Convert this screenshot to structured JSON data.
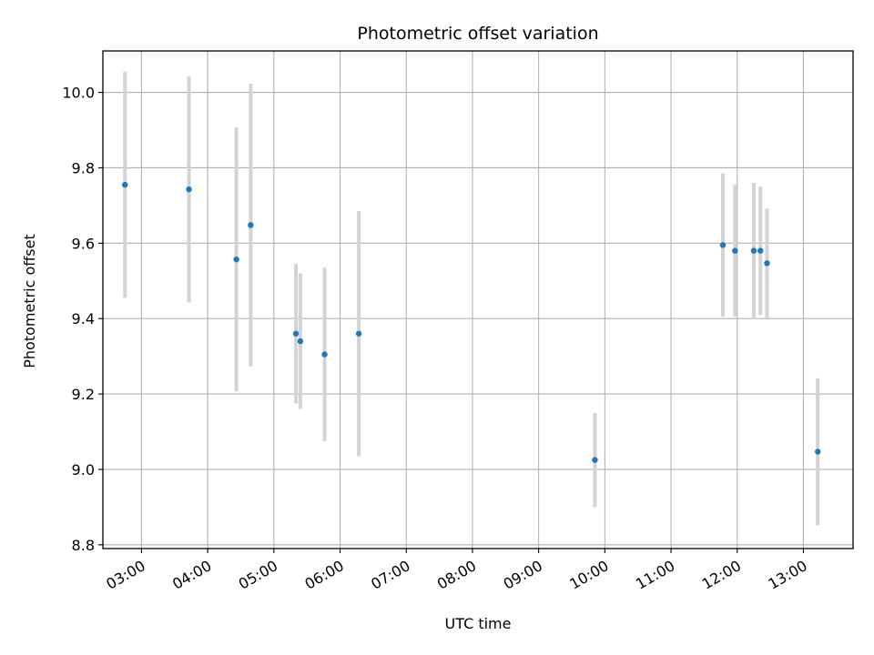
{
  "chart_data": {
    "type": "scatter",
    "title": "Photometric offset variation",
    "xlabel": "UTC time",
    "ylabel": "Photometric offset",
    "x_ticks": [
      "03:00",
      "04:00",
      "05:00",
      "06:00",
      "07:00",
      "08:00",
      "09:00",
      "10:00",
      "11:00",
      "12:00",
      "13:00"
    ],
    "y_ticks": [
      "8.8",
      "9.0",
      "9.2",
      "9.4",
      "9.6",
      "9.8",
      "10.0"
    ],
    "xlim": [
      "02:25",
      "13:45"
    ],
    "ylim": [
      8.79,
      10.11
    ],
    "grid": true,
    "colors": {
      "point": "#1f77b4",
      "errorbar": "#d3d3d3",
      "grid": "#b0b0b0"
    },
    "points": [
      {
        "time": "02:45",
        "y": 9.755,
        "err": 0.3
      },
      {
        "time": "03:43",
        "y": 9.743,
        "err": 0.3
      },
      {
        "time": "04:26",
        "y": 9.557,
        "err": 0.35
      },
      {
        "time": "04:39",
        "y": 9.648,
        "err": 0.375
      },
      {
        "time": "05:20",
        "y": 9.36,
        "err": 0.185
      },
      {
        "time": "05:24",
        "y": 9.34,
        "err": 0.18
      },
      {
        "time": "05:46",
        "y": 9.305,
        "err": 0.23
      },
      {
        "time": "06:17",
        "y": 9.36,
        "err": 0.325
      },
      {
        "time": "09:51",
        "y": 9.025,
        "err": 0.125
      },
      {
        "time": "11:47",
        "y": 9.595,
        "err": 0.19
      },
      {
        "time": "11:58",
        "y": 9.58,
        "err": 0.175
      },
      {
        "time": "12:15",
        "y": 9.58,
        "err": 0.18
      },
      {
        "time": "12:21",
        "y": 9.58,
        "err": 0.17
      },
      {
        "time": "12:27",
        "y": 9.547,
        "err": 0.145
      },
      {
        "time": "13:13",
        "y": 9.047,
        "err": 0.195
      }
    ]
  }
}
